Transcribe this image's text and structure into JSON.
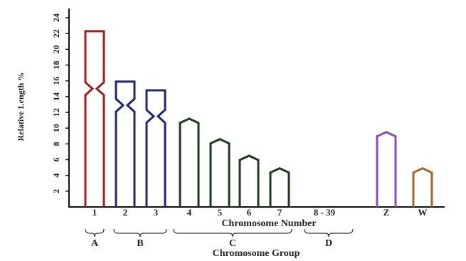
{
  "chart_data": {
    "type": "ideogram",
    "y_label": "Relative Length %",
    "x_label": "Chromosome Number",
    "group_label": "Chromosome Group",
    "categories": [
      "1",
      "2",
      "3",
      "4",
      "5",
      "6",
      "7",
      "8 - 39",
      "Z",
      "W"
    ],
    "values": [
      22.3,
      15.9,
      14.8,
      11.2,
      8.6,
      6.5,
      4.9,
      null,
      9.5,
      4.9
    ],
    "centromere": [
      15,
      12.9,
      11.5,
      null,
      null,
      null,
      null,
      null,
      null,
      null
    ],
    "colors": [
      "#9b1f24",
      "#1f2a6e",
      "#1f2a6e",
      "#1c3a1c",
      "#1c3a1c",
      "#1c3a1c",
      "#1c3a1c",
      null,
      "#8a4fb0",
      "#a3662b"
    ],
    "groups": [
      "A",
      "B",
      "C",
      "D"
    ],
    "ylim": [
      0,
      24
    ],
    "yticks": [
      2,
      4,
      6,
      8,
      10,
      12,
      14,
      16,
      18,
      20,
      22,
      24
    ]
  }
}
